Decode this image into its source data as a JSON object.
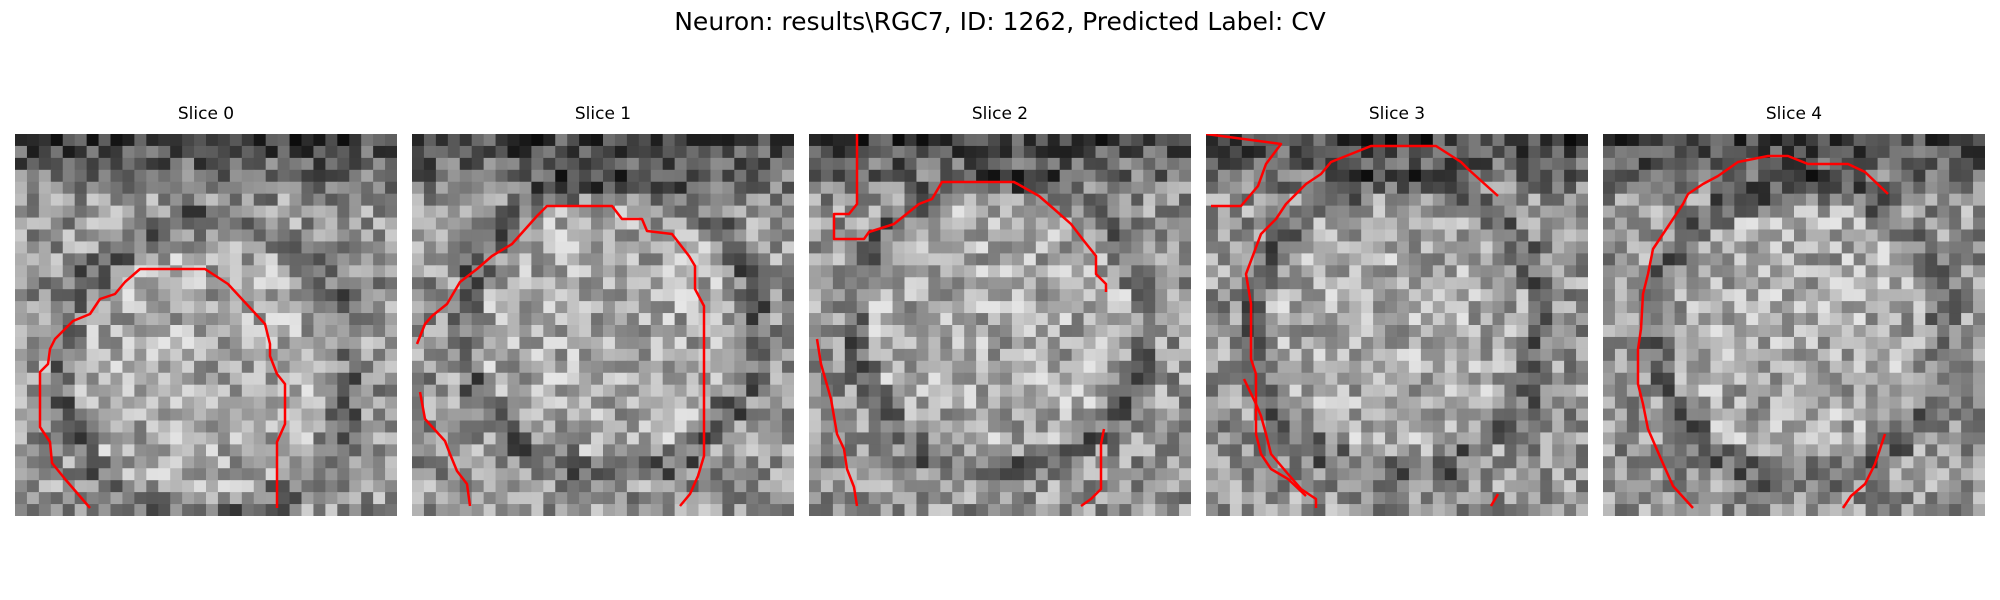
{
  "title": "Neuron: results\\RGC7, ID: 1262, Predicted Label: CV",
  "contour_color": "#ff0000",
  "slices": [
    {
      "label": "Slice 0",
      "seed": 11,
      "bright_center": [
        0.5,
        0.62
      ]
    },
    {
      "label": "Slice 1",
      "seed": 27,
      "bright_center": [
        0.52,
        0.5
      ]
    },
    {
      "label": "Slice 2",
      "seed": 43,
      "bright_center": [
        0.5,
        0.5
      ]
    },
    {
      "label": "Slice 3",
      "seed": 59,
      "bright_center": [
        0.5,
        0.5
      ]
    },
    {
      "label": "Slice 4",
      "seed": 75,
      "bright_center": [
        0.52,
        0.52
      ]
    }
  ]
}
